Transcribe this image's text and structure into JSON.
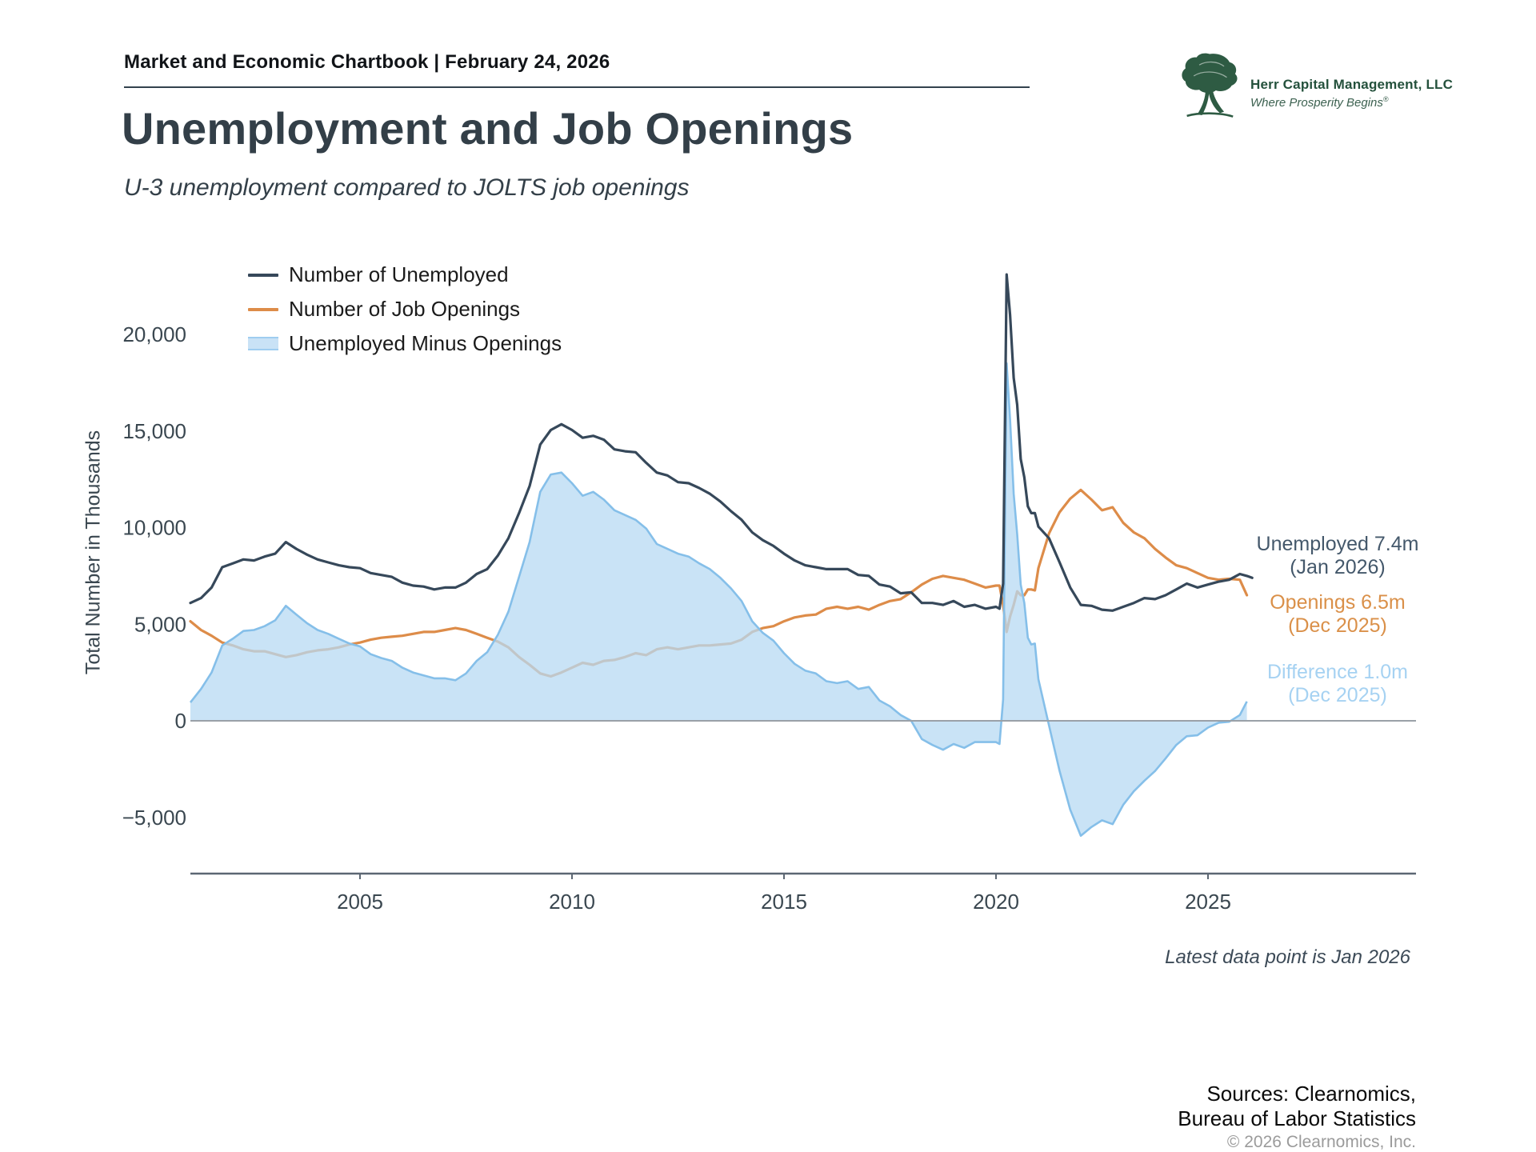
{
  "header": {
    "eyebrow": "Market and Economic Chartbook | February 24, 2026",
    "title": "Unemployment and Job Openings",
    "subtitle": "U-3 unemployment compared to JOLTS job openings"
  },
  "logo": {
    "company": "Herr Capital Management, LLC",
    "tagline": "Where Prosperity Begins",
    "tagline_mark": "®",
    "color": "#2e5b43"
  },
  "legend": [
    {
      "label": "Number of Unemployed",
      "type": "line",
      "color": "#36485a"
    },
    {
      "label": "Number of Job Openings",
      "type": "line",
      "color": "#dd8c49"
    },
    {
      "label": "Unemployed Minus Openings",
      "type": "area",
      "color": "#c9e2f6",
      "edge": "#85bfe9"
    }
  ],
  "annotations": [
    {
      "line1": "Unemployed 7.4m",
      "line2": "(Jan 2026)",
      "color": "#44586b"
    },
    {
      "line1": "Openings 6.5m",
      "line2": "(Dec 2025)",
      "color": "#da9049"
    },
    {
      "line1": "Difference 1.0m",
      "line2": "(Dec 2025)",
      "color": "#a6d2f2"
    }
  ],
  "footer": {
    "latest_note": "Latest data point is Jan 2026",
    "sources_line1": "Sources: Clearnomics,",
    "sources_line2": "Bureau of Labor Statistics",
    "copyright": "© 2026 Clearnomics, Inc."
  },
  "chart_data": {
    "type": "line",
    "title": "Unemployment and Job Openings",
    "xlabel": "",
    "ylabel": "Total Number in Thousands",
    "units": "thousands",
    "grid": false,
    "legend_position": "upper-left",
    "xlim": [
      2001,
      2026.3
    ],
    "ylim": [
      -7000,
      24000
    ],
    "axes": {
      "y_title": "Total Number in Thousands",
      "y_ticks": [
        {
          "v": -5000,
          "label": "−5,000"
        },
        {
          "v": 0,
          "label": "0"
        },
        {
          "v": 5000,
          "label": "5,000"
        },
        {
          "v": 10000,
          "label": "10,000"
        },
        {
          "v": 15000,
          "label": "15,000"
        },
        {
          "v": 20000,
          "label": "20,000"
        }
      ],
      "x_ticks": [
        {
          "v": 2005,
          "label": "2005"
        },
        {
          "v": 2010,
          "label": "2010"
        },
        {
          "v": 2015,
          "label": "2015"
        },
        {
          "v": 2020,
          "label": "2020"
        },
        {
          "v": 2025,
          "label": "2025"
        }
      ]
    },
    "x": [
      2001,
      2001.25,
      2001.5,
      2001.75,
      2002,
      2002.25,
      2002.5,
      2002.75,
      2003,
      2003.25,
      2003.5,
      2003.75,
      2004,
      2004.25,
      2004.5,
      2004.75,
      2005,
      2005.25,
      2005.5,
      2005.75,
      2006,
      2006.25,
      2006.5,
      2006.75,
      2007,
      2007.25,
      2007.5,
      2007.75,
      2008,
      2008.25,
      2008.5,
      2008.75,
      2009,
      2009.25,
      2009.5,
      2009.75,
      2010,
      2010.25,
      2010.5,
      2010.75,
      2011,
      2011.25,
      2011.5,
      2011.75,
      2012,
      2012.25,
      2012.5,
      2012.75,
      2013,
      2013.25,
      2013.5,
      2013.75,
      2014,
      2014.25,
      2014.5,
      2014.75,
      2015,
      2015.25,
      2015.5,
      2015.75,
      2016,
      2016.25,
      2016.5,
      2016.75,
      2017,
      2017.25,
      2017.5,
      2017.75,
      2018,
      2018.25,
      2018.5,
      2018.75,
      2019,
      2019.25,
      2019.5,
      2019.75,
      2020.0,
      2020.083,
      2020.167,
      2020.25,
      2020.333,
      2020.417,
      2020.5,
      2020.583,
      2020.667,
      2020.75,
      2020.833,
      2020.917,
      2021,
      2021.25,
      2021.5,
      2021.75,
      2022,
      2022.25,
      2022.5,
      2022.75,
      2023,
      2023.25,
      2023.5,
      2023.75,
      2024,
      2024.25,
      2024.5,
      2024.75,
      2025,
      2025.25,
      2025.5,
      2025.75,
      2025.917,
      2026.042
    ],
    "series": [
      {
        "name": "Number of Unemployed",
        "color": "#36485a",
        "latest": {
          "label": "Unemployed 7.4m",
          "date": "Jan 2026",
          "value_thousands": 7400
        },
        "values": [
          6100,
          6350,
          6900,
          7950,
          8150,
          8350,
          8300,
          8500,
          8650,
          9250,
          8900,
          8600,
          8350,
          8200,
          8050,
          7950,
          7900,
          7650,
          7550,
          7450,
          7150,
          7000,
          6950,
          6800,
          6900,
          6900,
          7150,
          7600,
          7850,
          8550,
          9450,
          10750,
          12150,
          14300,
          15050,
          15350,
          15050,
          14650,
          14750,
          14550,
          14050,
          13950,
          13900,
          13350,
          12850,
          12700,
          12350,
          12300,
          12050,
          11750,
          11350,
          10850,
          10400,
          9750,
          9350,
          9050,
          8650,
          8300,
          8050,
          7950,
          7850,
          7850,
          7850,
          7550,
          7500,
          7050,
          6950,
          6600,
          6650,
          6100,
          6100,
          6000,
          6200,
          5900,
          6000,
          5800,
          5900,
          5800,
          7100,
          23100,
          21000,
          17750,
          16350,
          13550,
          12600,
          11100,
          10750,
          10750,
          10050,
          9450,
          8200,
          6900,
          6000,
          5950,
          5750,
          5700,
          5900,
          6100,
          6350,
          6300,
          6500,
          6800,
          7100,
          6900,
          7050,
          7200,
          7300,
          7600,
          7500,
          7400
        ]
      },
      {
        "name": "Number of Job Openings",
        "color": "#dd8c49",
        "latest": {
          "label": "Openings 6.5m",
          "date": "Dec 2025",
          "value_thousands": 6500
        },
        "values": [
          5150,
          4700,
          4400,
          4050,
          3900,
          3700,
          3600,
          3600,
          3450,
          3300,
          3400,
          3550,
          3650,
          3700,
          3800,
          3950,
          4050,
          4200,
          4300,
          4350,
          4400,
          4500,
          4600,
          4600,
          4700,
          4800,
          4700,
          4500,
          4300,
          4100,
          3800,
          3300,
          2900,
          2450,
          2300,
          2500,
          2750,
          3000,
          2900,
          3100,
          3150,
          3300,
          3500,
          3400,
          3700,
          3800,
          3700,
          3800,
          3900,
          3900,
          3950,
          4000,
          4200,
          4600,
          4800,
          4900,
          5150,
          5350,
          5450,
          5500,
          5800,
          5900,
          5800,
          5900,
          5750,
          6000,
          6200,
          6300,
          6650,
          7050,
          7350,
          7500,
          7400,
          7300,
          7100,
          6900,
          7000,
          7000,
          6000,
          4600,
          5400,
          6000,
          6700,
          6500,
          6500,
          6800,
          6800,
          6750,
          7900,
          9700,
          10800,
          11500,
          11950,
          11450,
          10900,
          11050,
          10250,
          9750,
          9450,
          8900,
          8450,
          8050,
          7900,
          7650,
          7400,
          7300,
          7350,
          7300,
          6500,
          null
        ]
      },
      {
        "name": "Unemployed Minus Openings",
        "derived": "unemployed minus openings",
        "fill": "#b7d9f3",
        "fill_opacity": 0.75,
        "edge": "#85bfe9",
        "latest": {
          "label": "Difference 1.0m",
          "date": "Dec 2025",
          "value_thousands": 1000
        },
        "values": [
          950,
          1650,
          2500,
          3900,
          4250,
          4650,
          4700,
          4900,
          5200,
          5950,
          5500,
          5050,
          4700,
          4500,
          4250,
          4000,
          3850,
          3450,
          3250,
          3100,
          2750,
          2500,
          2350,
          2200,
          2200,
          2100,
          2450,
          3100,
          3550,
          4450,
          5650,
          7450,
          9250,
          11850,
          12750,
          12850,
          12300,
          11650,
          11850,
          11450,
          10900,
          10650,
          10400,
          9950,
          9150,
          8900,
          8650,
          8500,
          8150,
          7850,
          7400,
          6850,
          6200,
          5150,
          4550,
          4150,
          3500,
          2950,
          2600,
          2450,
          2050,
          1950,
          2050,
          1650,
          1750,
          1050,
          750,
          300,
          0,
          -950,
          -1250,
          -1500,
          -1200,
          -1400,
          -1100,
          -1100,
          -1100,
          -1200,
          1100,
          18500,
          15600,
          11750,
          9650,
          7050,
          6100,
          4300,
          3950,
          4000,
          2150,
          -250,
          -2600,
          -4600,
          -5950,
          -5500,
          -5150,
          -5350,
          -4350,
          -3650,
          -3100,
          -2600,
          -1950,
          -1250,
          -800,
          -750,
          -350,
          -100,
          -50,
          300,
          1000,
          null
        ]
      }
    ],
    "footnote": "Latest data point is Jan 2026"
  }
}
